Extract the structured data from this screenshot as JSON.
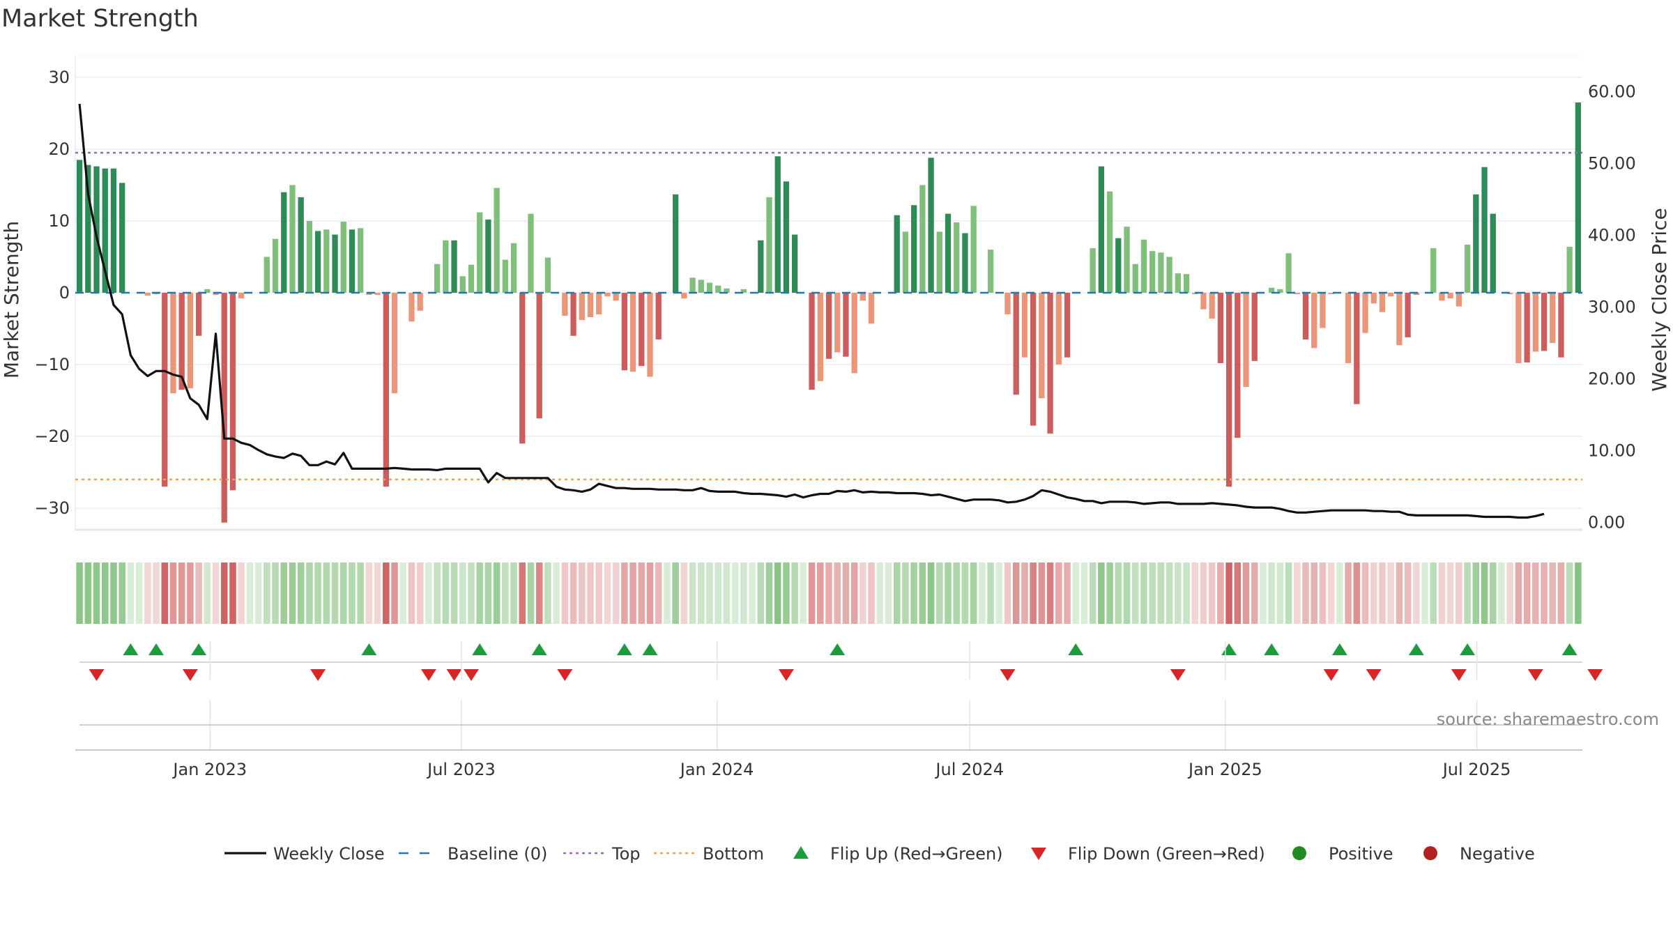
{
  "chart_data": {
    "type": "bar",
    "title": "Market Strength",
    "ylabel": "Market Strength",
    "y2label": "Weekly Close Price",
    "ylim": [
      -33,
      33
    ],
    "y2lim": [
      -1.0,
      65.0
    ],
    "yticks": [
      30,
      20,
      10,
      0,
      -10,
      -20,
      -30
    ],
    "ytick_labels": [
      "30",
      "20",
      "10",
      "0",
      "−10",
      "−20",
      "−30"
    ],
    "y2ticks": [
      60,
      50,
      40,
      30,
      20,
      10,
      0
    ],
    "y2tick_labels": [
      "60.00",
      "50.00",
      "40.00",
      "30.00",
      "20.00",
      "10.00",
      "0.00"
    ],
    "x_start": "2022-09-26",
    "x_end": "2025-09-15",
    "xticks": [
      {
        "date": "2023-01-01",
        "label": "Jan 2023"
      },
      {
        "date": "2023-07-01",
        "label": "Jul 2023"
      },
      {
        "date": "2024-01-01",
        "label": "Jan 2024"
      },
      {
        "date": "2024-07-01",
        "label": "Jul 2024"
      },
      {
        "date": "2025-01-01",
        "label": "Jan 2025"
      },
      {
        "date": "2025-07-01",
        "label": "Jul 2025"
      }
    ],
    "top_level": 19.5,
    "bottom_level": -26.0,
    "strength": [
      18.5,
      17.8,
      17.6,
      17.3,
      17.3,
      15.3,
      0,
      0,
      -0.4,
      -0.2,
      -27,
      -14,
      -13.5,
      -13.3,
      -6,
      0.5,
      -0.3,
      -32,
      -27.5,
      -0.8,
      0,
      0,
      5,
      7.5,
      14,
      15,
      13.3,
      10,
      8.6,
      8.8,
      8.1,
      9.9,
      8.8,
      9,
      -0.3,
      -0.3,
      -27,
      -14,
      0,
      -4,
      -2.5,
      0,
      4,
      7.3,
      7.3,
      2.3,
      3.9,
      11.2,
      10.2,
      14.6,
      4.6,
      6.9,
      -21,
      11,
      -17.5,
      4.9,
      0,
      -3.2,
      -6,
      -3.8,
      -3.4,
      -3,
      -0.5,
      -1.1,
      -10.8,
      -11,
      -10.2,
      -11.7,
      -6.5,
      0,
      13.7,
      -0.8,
      2.1,
      1.8,
      1.4,
      1,
      0.6,
      0,
      0.5,
      0,
      7.3,
      13.3,
      19,
      15.5,
      8.1,
      0,
      -13.5,
      -12.3,
      -9.2,
      -8.3,
      -8.9,
      -11.2,
      -1.1,
      -4.3,
      0,
      0,
      10.8,
      8.5,
      12.2,
      15,
      18.8,
      8.5,
      11,
      9.8,
      8.3,
      12.1,
      0,
      6,
      0,
      -3,
      -14.2,
      -9,
      -18.5,
      -14.7,
      -19.6,
      -10,
      -9,
      0,
      0,
      6.2,
      17.6,
      14.1,
      7.6,
      9.2,
      4,
      7.4,
      5.8,
      5.6,
      5,
      2.7,
      2.6,
      -0.2,
      -2.3,
      -3.6,
      -9.8,
      -27,
      -20.2,
      -13.1,
      -9.5,
      0,
      0.7,
      0.5,
      5.5,
      -0.2,
      -6.5,
      -7.7,
      -4.9,
      -0.2,
      0,
      -9.8,
      -15.5,
      -5.6,
      -1.5,
      -2.7,
      -0.5,
      -7.3,
      -6.2,
      -0.3,
      0,
      6.2,
      -1.1,
      -0.8,
      -1.9,
      6.7,
      13.7,
      17.5,
      11,
      0,
      -0.2,
      -9.8,
      -9.7,
      -8.2,
      -8.1,
      -7,
      -9,
      6.4,
      26.5
    ],
    "close": [
      58.3,
      45.8,
      39.8,
      35.0,
      30.3,
      29.0,
      23.3,
      21.4,
      20.4,
      21.1,
      21.1,
      20.6,
      20.3,
      17.3,
      16.4,
      14.4,
      26.3,
      11.7,
      11.7,
      11.1,
      10.8,
      10.1,
      9.5,
      9.2,
      9.0,
      9.6,
      9.3,
      8.0,
      8.0,
      8.5,
      8.1,
      9.7,
      7.5,
      7.5,
      7.5,
      7.5,
      7.5,
      7.6,
      7.5,
      7.4,
      7.4,
      7.4,
      7.3,
      7.5,
      7.5,
      7.5,
      7.5,
      7.5,
      5.6,
      6.9,
      6.2,
      6.2,
      6.2,
      6.2,
      6.2,
      6.2,
      5.0,
      4.6,
      4.5,
      4.3,
      4.6,
      5.4,
      5.1,
      4.8,
      4.8,
      4.7,
      4.7,
      4.7,
      4.6,
      4.6,
      4.6,
      4.5,
      4.5,
      4.8,
      4.4,
      4.3,
      4.3,
      4.3,
      4.1,
      4.0,
      4.0,
      3.9,
      3.8,
      3.6,
      3.9,
      3.5,
      3.8,
      4.0,
      4.0,
      4.4,
      4.3,
      4.5,
      4.2,
      4.3,
      4.2,
      4.2,
      4.1,
      4.1,
      4.1,
      4.0,
      3.8,
      3.9,
      3.6,
      3.3,
      3.0,
      3.2,
      3.2,
      3.2,
      3.1,
      2.8,
      2.9,
      3.2,
      3.7,
      4.5,
      4.3,
      3.9,
      3.5,
      3.3,
      3.0,
      3.0,
      2.7,
      2.9,
      2.9,
      2.9,
      2.8,
      2.6,
      2.7,
      2.8,
      2.8,
      2.6,
      2.6,
      2.6,
      2.6,
      2.7,
      2.6,
      2.5,
      2.4,
      2.2,
      2.1,
      2.1,
      2.1,
      1.9,
      1.6,
      1.4,
      1.4,
      1.5,
      1.6,
      1.7,
      1.7,
      1.7,
      1.7,
      1.7,
      1.6,
      1.6,
      1.5,
      1.5,
      1.1,
      1.0,
      1.0,
      1.0,
      1.0,
      1.0,
      1.0,
      1.0,
      0.9,
      0.8,
      0.8,
      0.8,
      0.8,
      0.7,
      0.7,
      0.9,
      1.2
    ],
    "flip_up_weeks": [
      6,
      9,
      14,
      34,
      47,
      54,
      64,
      67,
      89,
      117,
      135,
      140,
      148,
      157,
      163,
      175
    ],
    "flip_down_weeks": [
      2,
      13,
      28,
      41,
      44,
      46,
      57,
      83,
      109,
      129,
      147,
      152,
      162,
      171,
      178
    ],
    "colors": {
      "pos_strong": "#2e8b57",
      "pos_weak": "#7fbf7b",
      "neg_strong": "#cd5c5c",
      "neg_weak": "#e9967a",
      "close_line": "#111111",
      "baseline": "#1f77b4",
      "top": "#9467bd",
      "bottom": "#f0a050",
      "flip_up": "#1a9e3c",
      "flip_down": "#d62728",
      "positive": "#228b22",
      "negative": "#b22222"
    },
    "legend": [
      {
        "label": "Weekly Close",
        "kind": "line"
      },
      {
        "label": "Baseline (0)",
        "kind": "dash"
      },
      {
        "label": "Top",
        "kind": "dot-top"
      },
      {
        "label": "Bottom",
        "kind": "dot-bottom"
      },
      {
        "label": "Flip Up (Red→Green)",
        "kind": "tri-up"
      },
      {
        "label": "Flip Down (Green→Red)",
        "kind": "tri-down"
      },
      {
        "label": "Positive",
        "kind": "dot-pos"
      },
      {
        "label": "Negative",
        "kind": "dot-neg"
      }
    ],
    "legend_position": "bottom",
    "grid": true
  },
  "source_text": "source: sharemaestro.com"
}
